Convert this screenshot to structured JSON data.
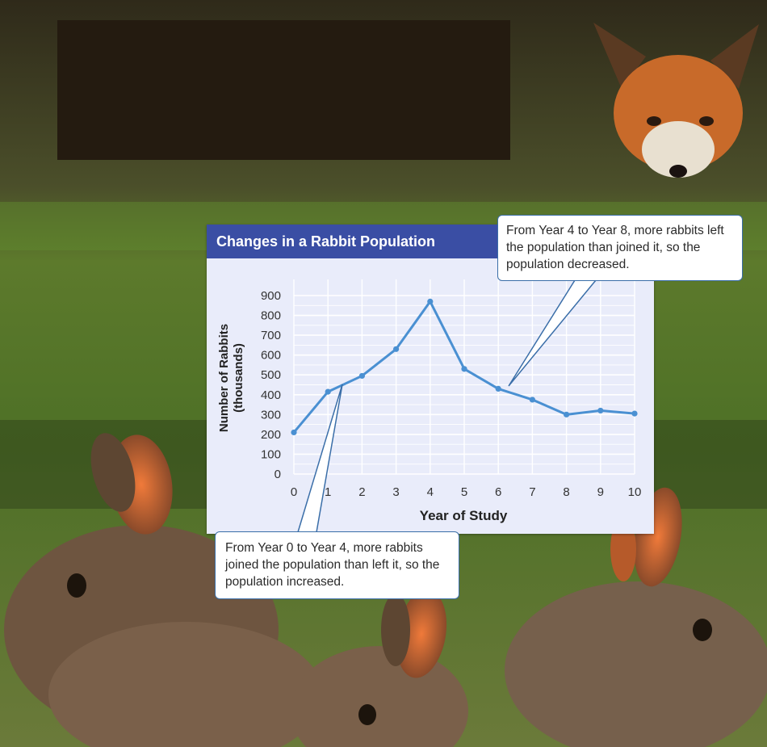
{
  "chart_data": {
    "type": "line",
    "title": "Changes in a Rabbit Population",
    "xlabel": "Year of Study",
    "ylabel": "Number of Rabbits",
    "ylabel_sub": "(thousands)",
    "x": [
      0,
      1,
      2,
      3,
      4,
      5,
      6,
      7,
      8,
      9,
      10
    ],
    "x_tick_labels": [
      "0",
      "1",
      "2",
      "3",
      "4",
      "5",
      "6",
      "7",
      "8",
      "9",
      "10"
    ],
    "y_ticks": [
      0,
      100,
      200,
      300,
      400,
      500,
      600,
      700,
      800,
      900
    ],
    "y_tick_labels": [
      "0",
      "100",
      "200",
      "300",
      "400",
      "500",
      "600",
      "700",
      "800",
      "900"
    ],
    "series": [
      {
        "values": [
          210,
          415,
          495,
          630,
          870,
          530,
          430,
          375,
          300,
          320,
          305
        ]
      }
    ],
    "xlim": [
      0,
      10
    ],
    "ylim": [
      0,
      900
    ],
    "grid": true,
    "line_color": "#4a90d2",
    "annotations": [
      {
        "text": "From Year 0 to Year 4, more rabbits joined the population than left it, so the population increased.",
        "x": 1.4,
        "y": 430
      },
      {
        "text": "From Year 4 to Year 8, more rabbits left the population than joined it, so the population decreased.",
        "x": 6.3,
        "y": 430
      }
    ]
  },
  "colors": {
    "header": "#3a4ea4",
    "plot_bg": "#e9ecfa",
    "grid": "#ffffff",
    "line": "#4a90d2",
    "callout_border": "#3a6ea8"
  }
}
